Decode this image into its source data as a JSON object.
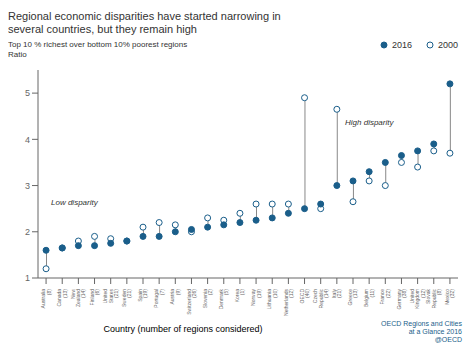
{
  "chart_data": {
    "type": "dumbbell",
    "title": "Regional economic disparities have started narrowing in\nseveral countries, but they remain high",
    "ylabel": "Top 10 % richest over bottom 10% poorest regions\nRatio",
    "xlabel": "Country (number of regions considered)",
    "categories": [
      "Australia\n(8)",
      "Canada\n(13)",
      "New\nZealand\n(14)",
      "Finland\n(6)",
      "United\nStates\n(21)",
      "Sweden\n(21)",
      "Spain\n(19)",
      "Portugal\n(7)",
      "Austria\n(9)",
      "Switzerland\n(26)",
      "Slovenia\n(2)",
      "Denmark\n(5)",
      "Korea\n(1)",
      "Norway\n(19)",
      "Lithuania\n(10)",
      "Netherlands\n(12)",
      "OECD\n(40)",
      "Czech\nRepublic\n(14)",
      "Italy\n(21)",
      "Greece\n(13)",
      "Belgium\n(11)",
      "France\n(22)",
      "Germany\n(38)",
      "United\nKingdom\n(12)",
      "Slovak\nRepublic\n(8)",
      "Mexico\n(32)"
    ],
    "series": [
      {
        "name": "2016",
        "color": "#1a5e8a",
        "marker": "circle",
        "values": [
          1.6,
          1.65,
          1.7,
          1.7,
          1.75,
          1.8,
          1.9,
          1.9,
          2.0,
          2.05,
          2.1,
          2.15,
          2.2,
          2.25,
          2.3,
          2.4,
          2.5,
          2.6,
          3.0,
          3.1,
          3.3,
          3.5,
          3.65,
          3.75,
          3.9,
          5.2
        ]
      },
      {
        "name": "2000",
        "color": "#1a5e8a",
        "marker": "hollow",
        "values": [
          1.2,
          1.65,
          1.8,
          1.9,
          1.85,
          1.8,
          2.1,
          2.2,
          2.15,
          2.0,
          2.3,
          2.25,
          2.4,
          2.6,
          2.6,
          2.6,
          4.9,
          2.5,
          4.65,
          2.65,
          3.1,
          3.0,
          3.5,
          3.4,
          3.75,
          3.7
        ]
      }
    ],
    "color": "#888888",
    "ylim": [
      1,
      5.5
    ],
    "yticks": [
      1,
      2,
      3,
      4,
      5
    ],
    "grid": false,
    "legend": "top",
    "annotations": [
      "High disparity",
      "Low disparity",
      "OECD Regions and Cities",
      "at a Glance 2016",
      "@OECD"
    ]
  }
}
